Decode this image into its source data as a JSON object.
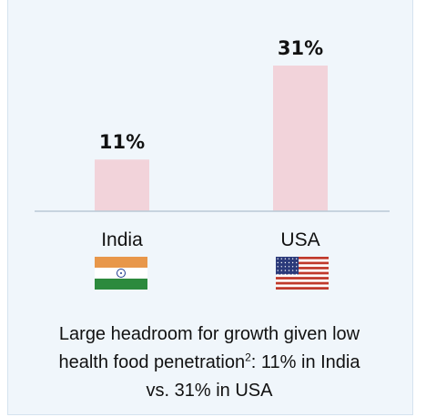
{
  "chart_data": {
    "type": "bar",
    "categories": [
      "India",
      "USA"
    ],
    "values": [
      11,
      31
    ],
    "value_labels": [
      "11%",
      "31%"
    ],
    "unit": "%",
    "ylim": [
      0,
      31
    ],
    "grid": false,
    "legend": "none"
  },
  "caption": {
    "line1": "Large headroom for growth given low",
    "line2_pre": "health food penetration",
    "superscript": "2",
    "line2_post": ": 11% in India",
    "line3": "vs. 31% in USA"
  },
  "colors": {
    "bar": "#f2d3da",
    "axis": "#b9c9d6",
    "panel": "#f0f6fb",
    "saffron": "#e8974a",
    "green": "#2c8a3d",
    "chakra": "#1f3b8f",
    "us_red": "#c0392b",
    "us_blue": "#2b3a7a"
  },
  "flags": {
    "india": "india-flag-icon",
    "usa": "usa-flag-icon"
  }
}
